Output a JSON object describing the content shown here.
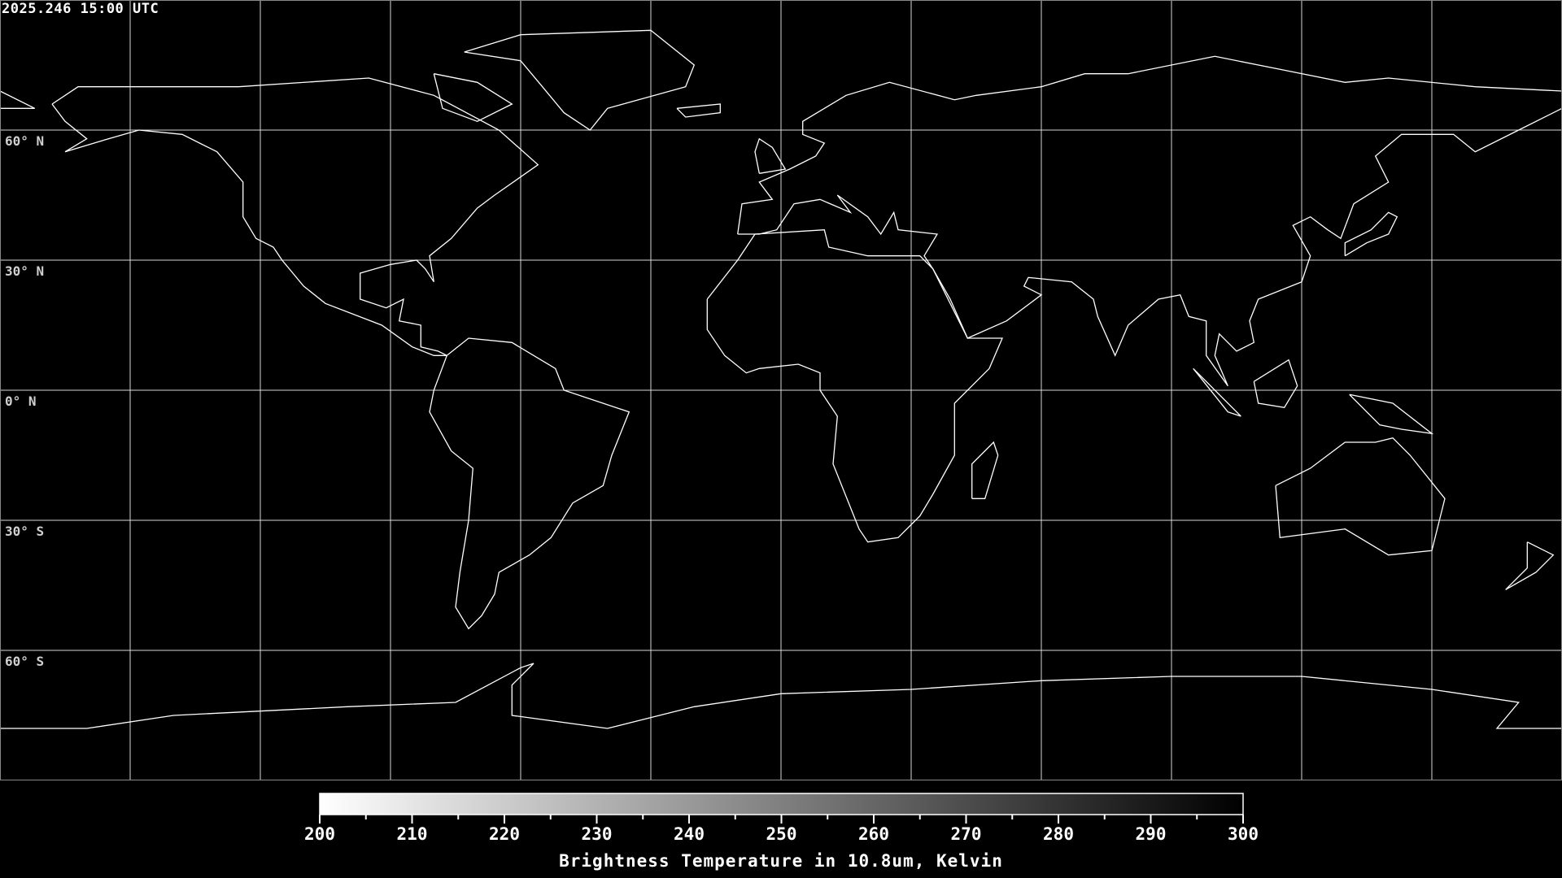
{
  "header": {
    "timestamp": "2025.246 15:00 UTC"
  },
  "map": {
    "projection": "equirectangular",
    "grid_spacing_degrees": 30,
    "lat_labels": [
      "60° N",
      "30° N",
      "0° N",
      "30° S",
      "60° S"
    ],
    "coastline_color": "#ffffff",
    "grid_color": "#ffffff",
    "no_data_color": "#000000"
  },
  "colorbar": {
    "title": "Brightness Temperature in 10.8um, Kelvin",
    "min": 200,
    "max": 300,
    "colormap": "white-to-black (cold = white)",
    "min_color": "#ffffff",
    "max_color": "#000000",
    "tick_labels": [
      "200",
      "210",
      "220",
      "230",
      "240",
      "250",
      "260",
      "270",
      "280",
      "290",
      "300"
    ]
  }
}
